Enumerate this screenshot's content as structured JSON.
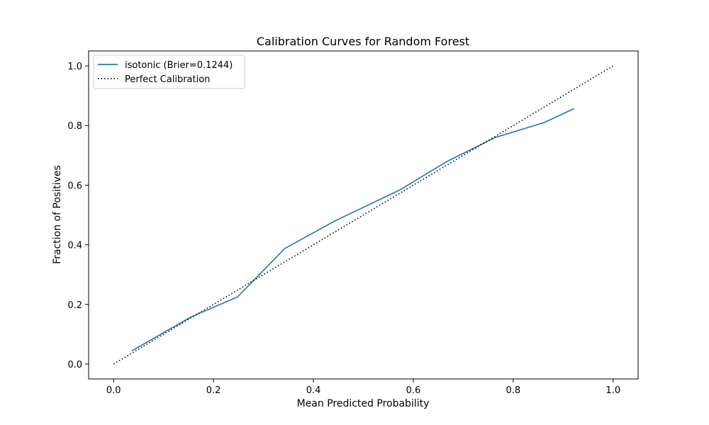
{
  "chart_data": {
    "type": "line",
    "title": "Calibration Curves for Random Forest",
    "xlabel": "Mean Predicted Probability",
    "ylabel": "Fraction of Positives",
    "xlim": [
      -0.05,
      1.05
    ],
    "ylim": [
      -0.05,
      1.05
    ],
    "xticks": [
      0.0,
      0.2,
      0.4,
      0.6,
      0.8,
      1.0
    ],
    "xtick_labels": [
      "0.0",
      "0.2",
      "0.4",
      "0.6",
      "0.8",
      "1.0"
    ],
    "yticks": [
      0.0,
      0.2,
      0.4,
      0.6,
      0.8,
      1.0
    ],
    "ytick_labels": [
      "0.0",
      "0.2",
      "0.4",
      "0.6",
      "0.8",
      "1.0"
    ],
    "grid": false,
    "legend_position": "top-left",
    "series": [
      {
        "name": "isotonic (Brier=0.1244)",
        "color": "#1f77b4",
        "style": "solid",
        "x": [
          0.037,
          0.155,
          0.248,
          0.343,
          0.443,
          0.574,
          0.668,
          0.764,
          0.862,
          0.922
        ],
        "y": [
          0.045,
          0.158,
          0.225,
          0.388,
          0.48,
          0.585,
          0.68,
          0.76,
          0.81,
          0.857
        ]
      },
      {
        "name": "Perfect Calibration",
        "color": "#000000",
        "style": "dotted",
        "x": [
          0.0,
          1.0
        ],
        "y": [
          0.0,
          1.0
        ]
      }
    ]
  }
}
